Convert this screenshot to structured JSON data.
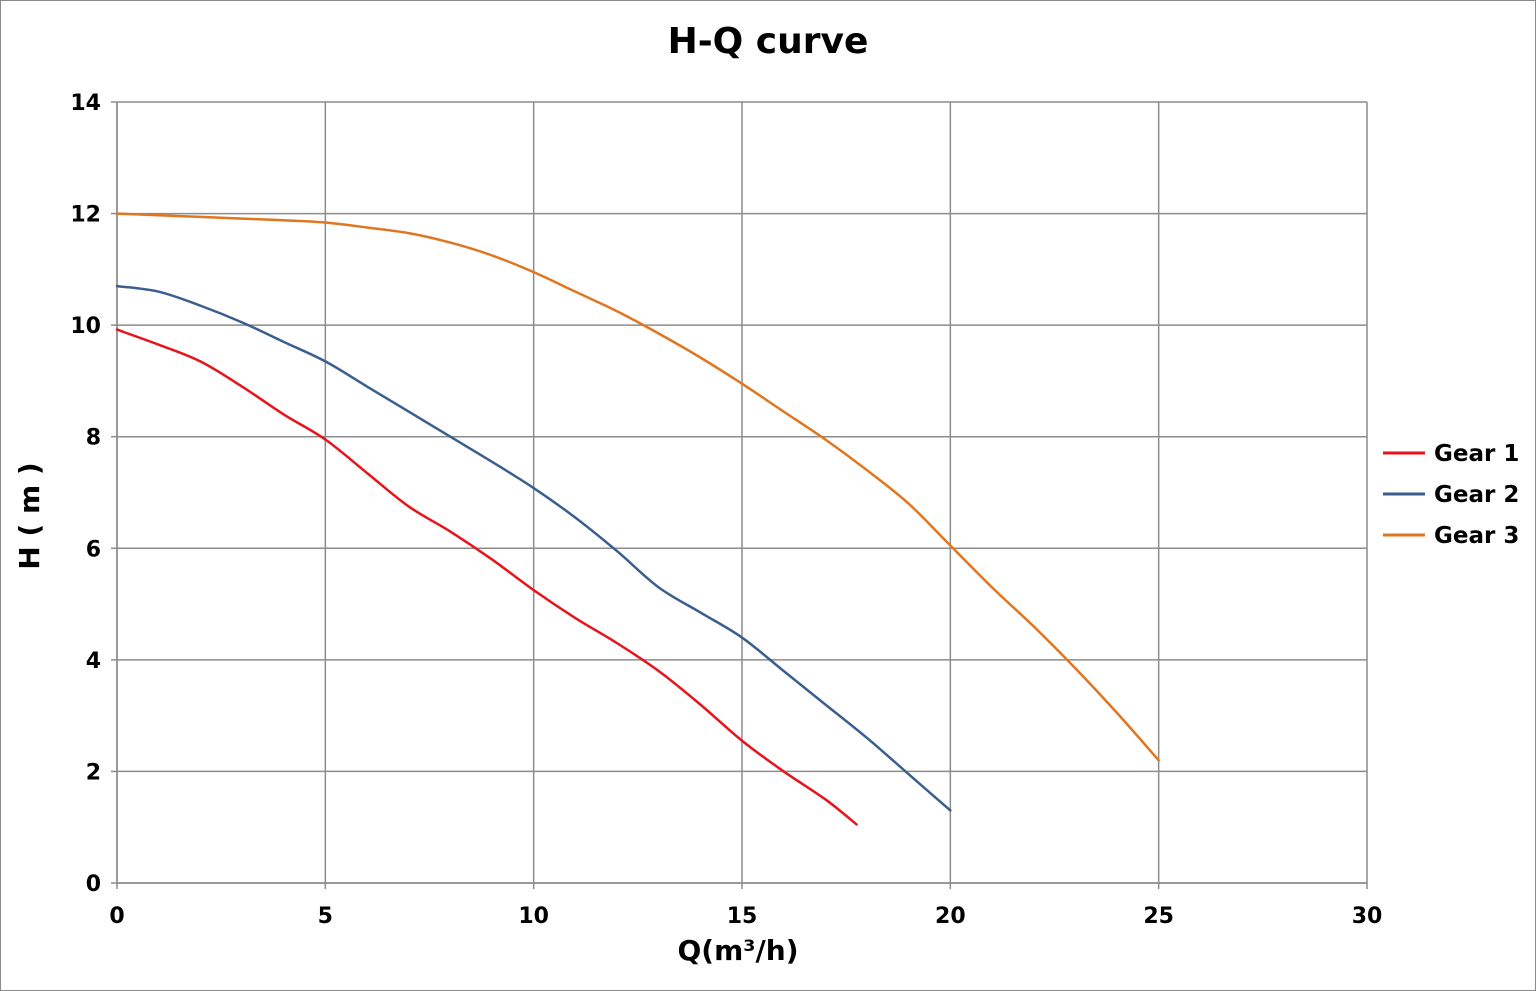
{
  "chart_data": {
    "type": "line",
    "title": "H-Q  curve",
    "xlabel": "Q(m³/h)",
    "ylabel": "H ( m )",
    "xlim": [
      0,
      30
    ],
    "ylim": [
      0,
      14
    ],
    "x_ticks": [
      0,
      5,
      10,
      15,
      20,
      25,
      30
    ],
    "y_ticks": [
      0,
      2,
      4,
      6,
      8,
      10,
      12,
      14
    ],
    "grid": true,
    "legend_position": "right",
    "series": [
      {
        "name": "Gear 1",
        "color": "#e8141b",
        "points": [
          [
            0,
            9.92
          ],
          [
            1,
            9.65
          ],
          [
            2,
            9.35
          ],
          [
            3,
            8.9
          ],
          [
            4,
            8.4
          ],
          [
            5,
            7.95
          ],
          [
            6,
            7.35
          ],
          [
            7,
            6.75
          ],
          [
            8,
            6.3
          ],
          [
            9,
            5.8
          ],
          [
            10,
            5.25
          ],
          [
            11,
            4.75
          ],
          [
            12,
            4.3
          ],
          [
            13,
            3.8
          ],
          [
            14,
            3.2
          ],
          [
            15,
            2.55
          ],
          [
            16,
            2.0
          ],
          [
            17,
            1.5
          ],
          [
            17.75,
            1.05
          ]
        ]
      },
      {
        "name": "Gear 2",
        "color": "#3a5f8f",
        "points": [
          [
            0,
            10.7
          ],
          [
            1,
            10.6
          ],
          [
            2,
            10.35
          ],
          [
            3,
            10.05
          ],
          [
            4,
            9.7
          ],
          [
            5,
            9.35
          ],
          [
            6,
            8.9
          ],
          [
            7,
            8.45
          ],
          [
            8,
            8.0
          ],
          [
            9,
            7.55
          ],
          [
            10,
            7.08
          ],
          [
            11,
            6.55
          ],
          [
            12,
            5.95
          ],
          [
            13,
            5.3
          ],
          [
            14,
            4.85
          ],
          [
            15,
            4.4
          ],
          [
            16,
            3.8
          ],
          [
            17,
            3.2
          ],
          [
            18,
            2.6
          ],
          [
            19,
            1.95
          ],
          [
            20,
            1.3
          ]
        ]
      },
      {
        "name": "Gear 3",
        "color": "#e0761f",
        "points": [
          [
            0,
            12.0
          ],
          [
            1,
            11.97
          ],
          [
            2,
            11.94
          ],
          [
            3,
            11.91
          ],
          [
            4,
            11.88
          ],
          [
            5,
            11.84
          ],
          [
            6,
            11.75
          ],
          [
            7,
            11.65
          ],
          [
            8,
            11.48
          ],
          [
            9,
            11.25
          ],
          [
            10,
            10.95
          ],
          [
            11,
            10.6
          ],
          [
            12,
            10.25
          ],
          [
            13,
            9.85
          ],
          [
            14,
            9.42
          ],
          [
            15,
            8.95
          ],
          [
            16,
            8.45
          ],
          [
            17,
            7.95
          ],
          [
            18,
            7.4
          ],
          [
            19,
            6.8
          ],
          [
            20,
            6.05
          ],
          [
            21,
            5.3
          ],
          [
            22,
            4.6
          ],
          [
            23,
            3.85
          ],
          [
            24,
            3.05
          ],
          [
            25,
            2.2
          ]
        ]
      }
    ]
  }
}
